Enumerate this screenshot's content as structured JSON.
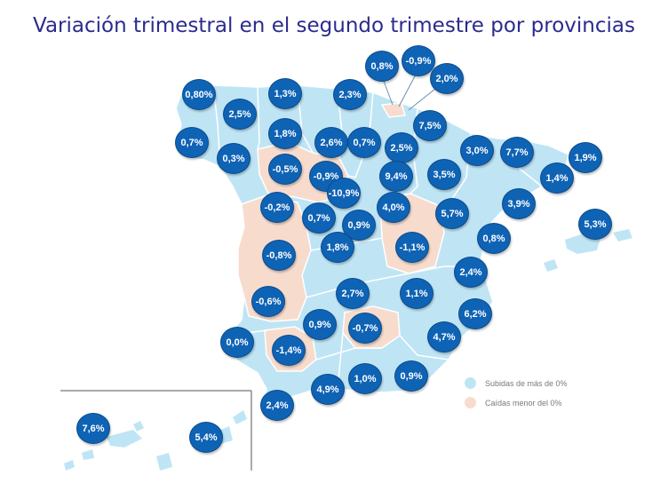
{
  "title": "Variación trimestral en el segundo trimestre por provincias",
  "legend": {
    "up": {
      "label": "Subidas de más de 0%",
      "color": "#bfe5f5"
    },
    "down": {
      "label": "Caídas menor del 0%",
      "color": "#f7dccd"
    }
  },
  "colors": {
    "badge": "#0f63b5",
    "land_up": "#bfe5f5",
    "land_down": "#f7dccd"
  },
  "values": [
    {
      "name": "value-a-coruna",
      "value": "0,80%"
    },
    {
      "name": "value-lugo",
      "value": "2,5%"
    },
    {
      "name": "value-asturias",
      "value": "1,3%"
    },
    {
      "name": "value-cantabria",
      "value": "2,3%"
    },
    {
      "name": "value-bizkaia",
      "value": "0,8%"
    },
    {
      "name": "value-gipuzkoa",
      "value": "-0,9%"
    },
    {
      "name": "value-araba",
      "value": "2,0%"
    },
    {
      "name": "value-navarra",
      "value": "7,5%"
    },
    {
      "name": "value-pontevedra",
      "value": "0,7%"
    },
    {
      "name": "value-ourense",
      "value": "0,3%"
    },
    {
      "name": "value-leon",
      "value": "1,8%"
    },
    {
      "name": "value-palencia",
      "value": "2,6%"
    },
    {
      "name": "value-burgos",
      "value": "0,7%"
    },
    {
      "name": "value-la-rioja",
      "value": "2,5%"
    },
    {
      "name": "value-huesca",
      "value": "3,0%"
    },
    {
      "name": "value-lleida",
      "value": "7,7%"
    },
    {
      "name": "value-girona",
      "value": "1,9%"
    },
    {
      "name": "value-barcelona",
      "value": "1,4%"
    },
    {
      "name": "value-zamora",
      "value": "-0,5%"
    },
    {
      "name": "value-valladolid",
      "value": "-0,9%"
    },
    {
      "name": "value-soria",
      "value": "9,4%"
    },
    {
      "name": "value-zaragoza",
      "value": "3,5%"
    },
    {
      "name": "value-segovia",
      "value": "-10,9%"
    },
    {
      "name": "value-salamanca",
      "value": "-0,2%"
    },
    {
      "name": "value-avila",
      "value": "0,7%"
    },
    {
      "name": "value-madrid",
      "value": "0,9%"
    },
    {
      "name": "value-guadalajara",
      "value": "4,0%"
    },
    {
      "name": "value-teruel",
      "value": "5,7%"
    },
    {
      "name": "value-tarragona",
      "value": "3,9%"
    },
    {
      "name": "value-baleares",
      "value": "5,3%"
    },
    {
      "name": "value-castellon",
      "value": "0,8%"
    },
    {
      "name": "value-caceres",
      "value": "-0,8%"
    },
    {
      "name": "value-toledo",
      "value": "1,8%"
    },
    {
      "name": "value-cuenca",
      "value": "-1,1%"
    },
    {
      "name": "value-valencia",
      "value": "2,4%"
    },
    {
      "name": "value-badajoz",
      "value": "-0,6%"
    },
    {
      "name": "value-ciudad-real",
      "value": "2,7%"
    },
    {
      "name": "value-albacete",
      "value": "1,1%"
    },
    {
      "name": "value-alicante",
      "value": "6,2%"
    },
    {
      "name": "value-cordoba",
      "value": "0,9%"
    },
    {
      "name": "value-jaen",
      "value": "-0,7%"
    },
    {
      "name": "value-murcia",
      "value": "4,7%"
    },
    {
      "name": "value-huelva",
      "value": "0,0%"
    },
    {
      "name": "value-sevilla",
      "value": "-1,4%"
    },
    {
      "name": "value-malaga",
      "value": "4,9%"
    },
    {
      "name": "value-granada",
      "value": "1,0%"
    },
    {
      "name": "value-almeria",
      "value": "0,9%"
    },
    {
      "name": "value-cadiz",
      "value": "2,4%"
    },
    {
      "name": "value-santa-cruz-tenerife",
      "value": "7,6%"
    },
    {
      "name": "value-las-palmas",
      "value": "5,4%"
    }
  ]
}
